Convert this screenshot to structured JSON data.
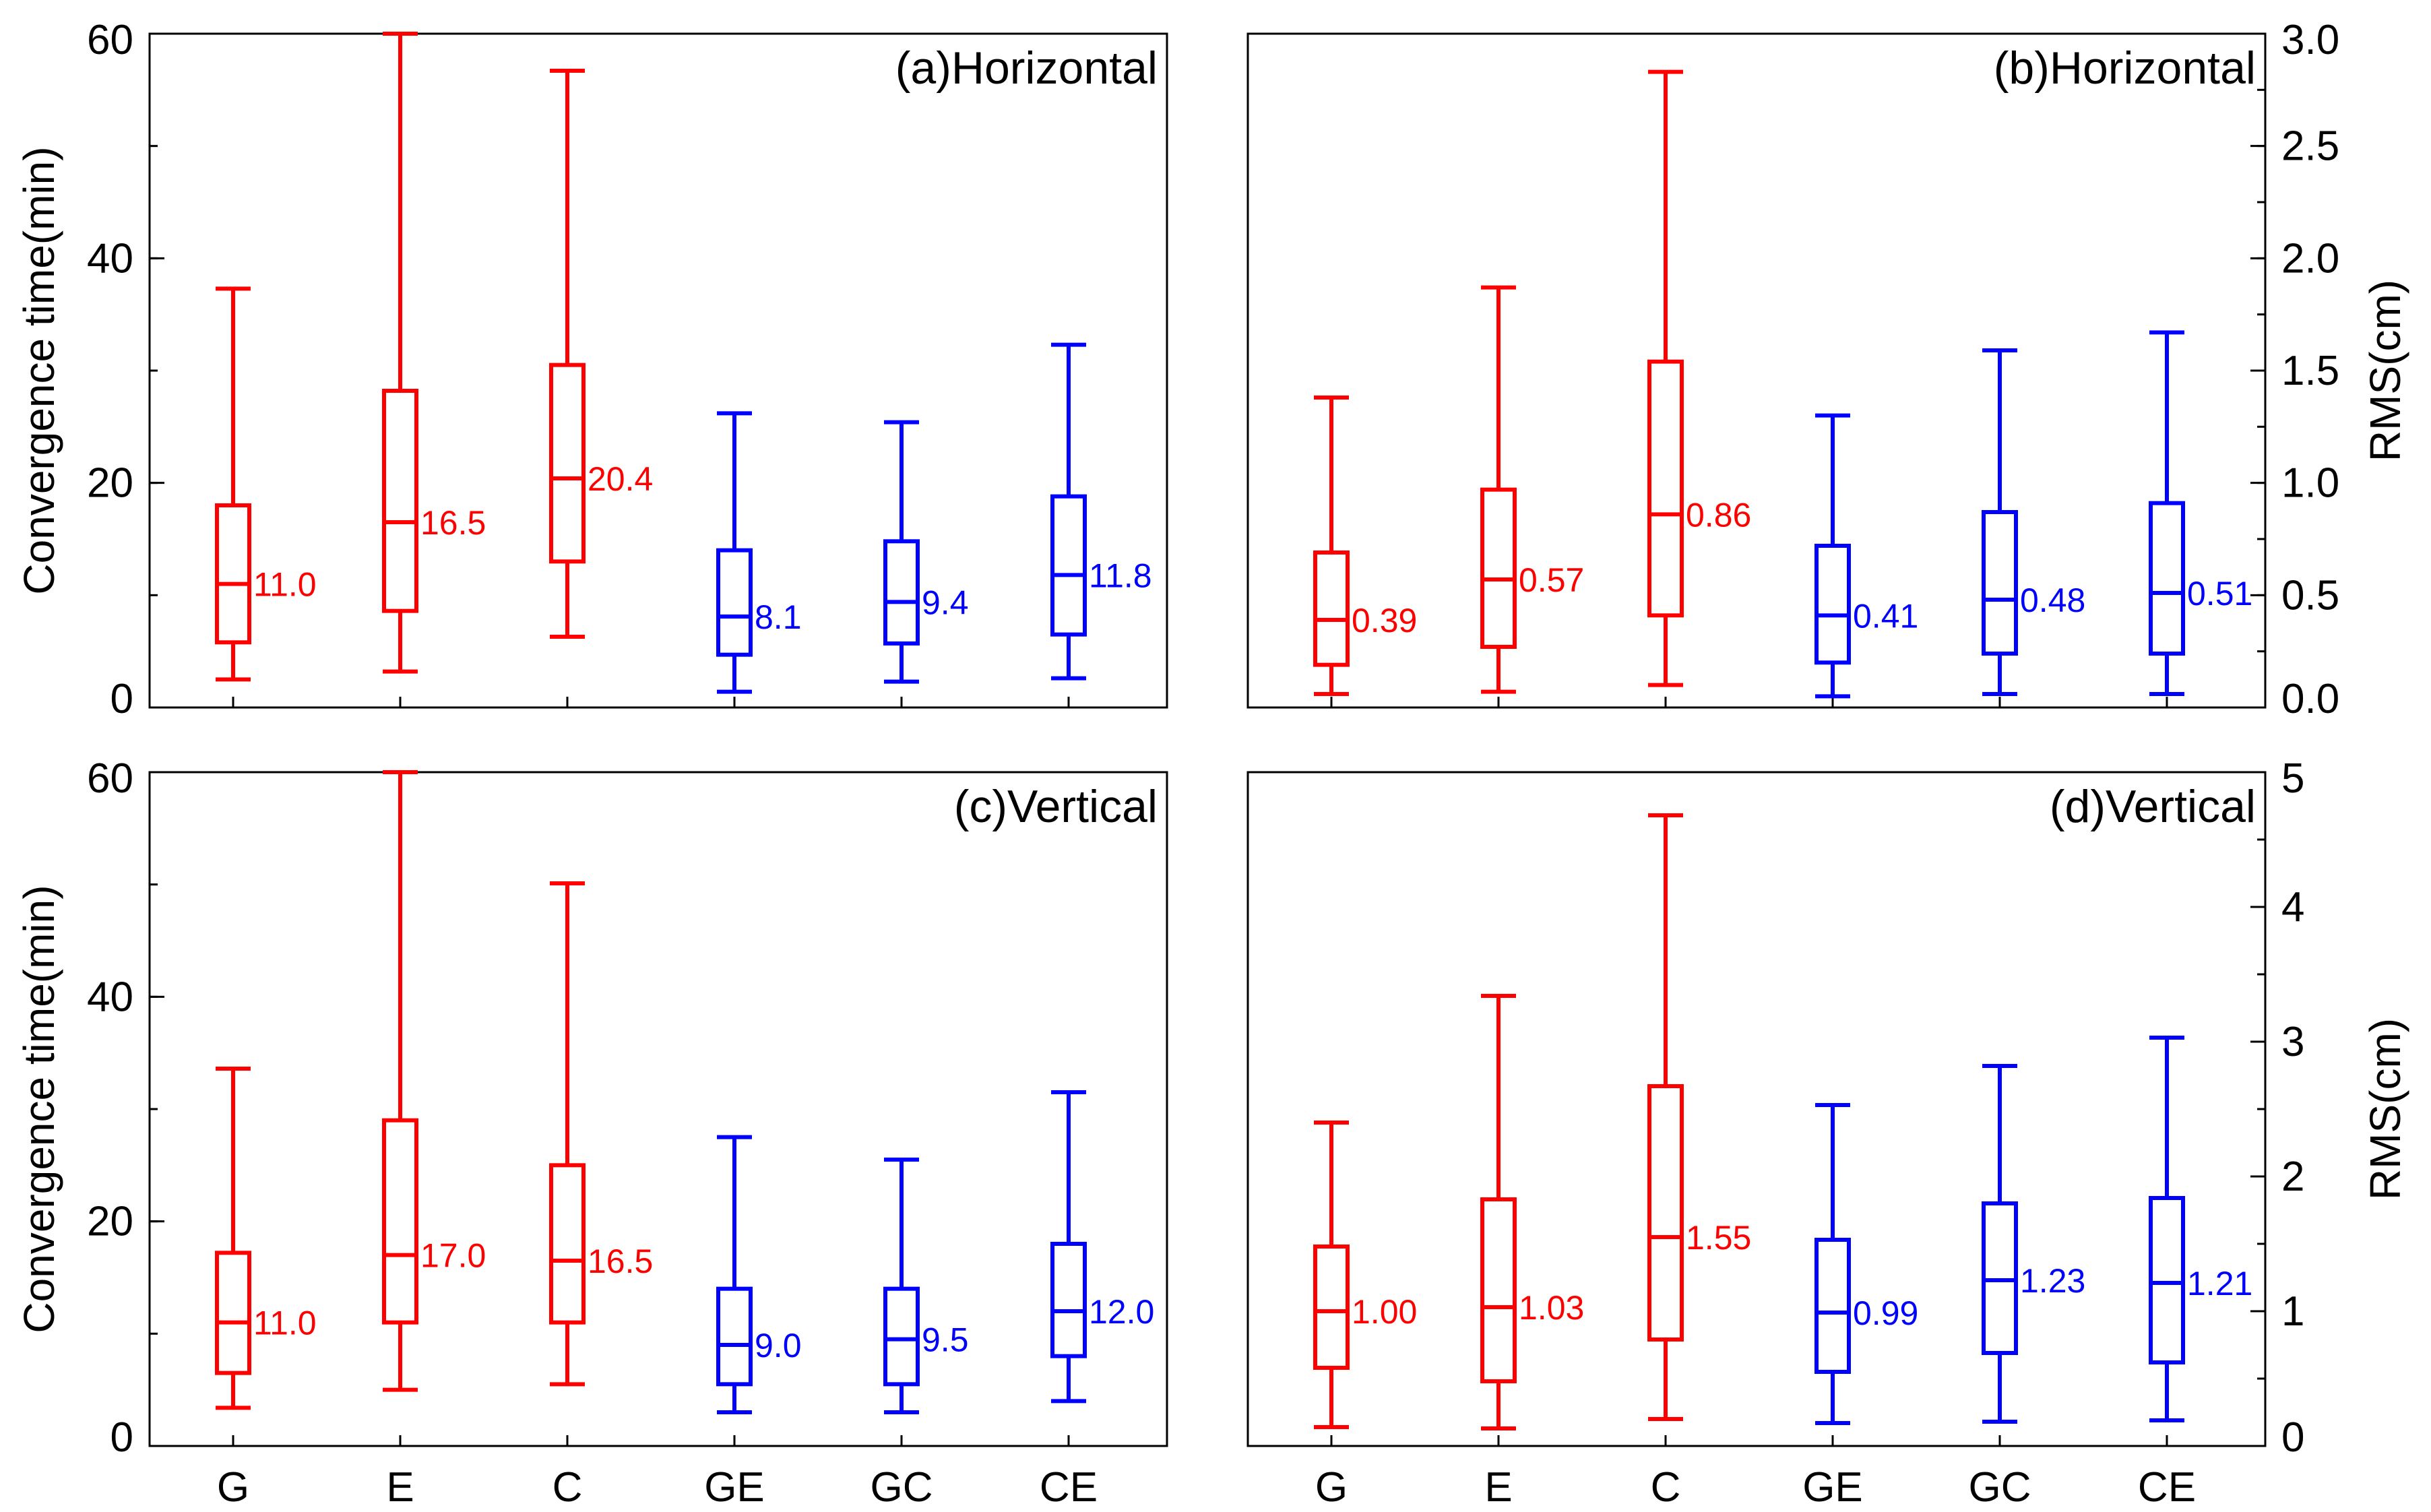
{
  "colors": {
    "single": "#ff0000",
    "dual": "#0000ff",
    "axis": "#000000"
  },
  "chart_data": [
    {
      "type": "boxplot",
      "title": "(a)Horizontal",
      "ylabel": "Convergence time(min)",
      "ylabel_side": "left",
      "ylim": [
        0,
        60
      ],
      "yticks": [
        0,
        20,
        40,
        60
      ],
      "ytick_labels": [
        "0",
        "20",
        "40",
        "60"
      ],
      "minor_step": 10,
      "categories": [
        "G",
        "E",
        "C",
        "GE",
        "GC",
        "CE"
      ],
      "show_xtick_labels": false,
      "boxes": [
        {
          "category": "G",
          "group": "single",
          "whisker_low": 2.5,
          "q1": 5.8,
          "median": 11.0,
          "q3": 18.0,
          "whisker_high": 37.3,
          "label": "11.0"
        },
        {
          "category": "E",
          "group": "single",
          "whisker_low": 3.2,
          "q1": 8.6,
          "median": 16.5,
          "q3": 28.2,
          "whisker_high": 60.0,
          "label": "16.5"
        },
        {
          "category": "C",
          "group": "single",
          "whisker_low": 6.3,
          "q1": 13.0,
          "median": 20.4,
          "q3": 30.5,
          "whisker_high": 56.7,
          "label": "20.4"
        },
        {
          "category": "GE",
          "group": "dual",
          "whisker_low": 1.4,
          "q1": 4.7,
          "median": 8.1,
          "q3": 14.0,
          "whisker_high": 26.2,
          "label": "8.1"
        },
        {
          "category": "GC",
          "group": "dual",
          "whisker_low": 2.3,
          "q1": 5.7,
          "median": 9.4,
          "q3": 14.8,
          "whisker_high": 25.4,
          "label": "9.4"
        },
        {
          "category": "CE",
          "group": "dual",
          "whisker_low": 2.6,
          "q1": 6.5,
          "median": 11.8,
          "q3": 18.8,
          "whisker_high": 32.3,
          "label": "11.8"
        }
      ]
    },
    {
      "type": "boxplot",
      "title": "(b)Horizontal",
      "ylabel": "RMS(cm)",
      "ylabel_side": "right",
      "ylim": [
        0,
        3.0
      ],
      "yticks": [
        0,
        0.5,
        1.0,
        1.5,
        2.0,
        2.5,
        3.0
      ],
      "ytick_labels": [
        "0.0",
        "0.5",
        "1.0",
        "1.5",
        "2.0",
        "2.5",
        "3.0"
      ],
      "minor_step": 0.25,
      "categories": [
        "G",
        "E",
        "C",
        "GE",
        "GC",
        "CE"
      ],
      "show_xtick_labels": false,
      "boxes": [
        {
          "category": "G",
          "group": "single",
          "whisker_low": 0.06,
          "q1": 0.19,
          "median": 0.39,
          "q3": 0.69,
          "whisker_high": 1.38,
          "label": "0.39"
        },
        {
          "category": "E",
          "group": "single",
          "whisker_low": 0.07,
          "q1": 0.27,
          "median": 0.57,
          "q3": 0.97,
          "whisker_high": 1.87,
          "label": "0.57"
        },
        {
          "category": "C",
          "group": "single",
          "whisker_low": 0.1,
          "q1": 0.41,
          "median": 0.86,
          "q3": 1.54,
          "whisker_high": 2.83,
          "label": "0.86"
        },
        {
          "category": "GE",
          "group": "dual",
          "whisker_low": 0.05,
          "q1": 0.2,
          "median": 0.41,
          "q3": 0.72,
          "whisker_high": 1.3,
          "label": "0.41"
        },
        {
          "category": "GC",
          "group": "dual",
          "whisker_low": 0.06,
          "q1": 0.24,
          "median": 0.48,
          "q3": 0.87,
          "whisker_high": 1.59,
          "label": "0.48"
        },
        {
          "category": "CE",
          "group": "dual",
          "whisker_low": 0.06,
          "q1": 0.24,
          "median": 0.51,
          "q3": 0.91,
          "whisker_high": 1.67,
          "label": "0.51"
        }
      ]
    },
    {
      "type": "boxplot",
      "title": "(c)Vertical",
      "ylabel": "Convergence time(min)",
      "ylabel_side": "left",
      "ylim": [
        0,
        60
      ],
      "yticks": [
        0,
        20,
        40,
        60
      ],
      "ytick_labels": [
        "0",
        "20",
        "40",
        "60"
      ],
      "minor_step": 10,
      "categories": [
        "G",
        "E",
        "C",
        "GE",
        "GC",
        "CE"
      ],
      "show_xtick_labels": true,
      "boxes": [
        {
          "category": "G",
          "group": "single",
          "whisker_low": 3.4,
          "q1": 6.5,
          "median": 11.0,
          "q3": 17.2,
          "whisker_high": 33.6,
          "label": "11.0"
        },
        {
          "category": "E",
          "group": "single",
          "whisker_low": 5.0,
          "q1": 11.0,
          "median": 17.0,
          "q3": 29.0,
          "whisker_high": 60.0,
          "label": "17.0"
        },
        {
          "category": "C",
          "group": "single",
          "whisker_low": 5.5,
          "q1": 11.0,
          "median": 16.5,
          "q3": 25.0,
          "whisker_high": 50.1,
          "label": "16.5"
        },
        {
          "category": "GE",
          "group": "dual",
          "whisker_low": 3.0,
          "q1": 5.5,
          "median": 9.0,
          "q3": 14.0,
          "whisker_high": 27.5,
          "label": "9.0"
        },
        {
          "category": "GC",
          "group": "dual",
          "whisker_low": 3.0,
          "q1": 5.5,
          "median": 9.5,
          "q3": 14.0,
          "whisker_high": 25.5,
          "label": "9.5"
        },
        {
          "category": "CE",
          "group": "dual",
          "whisker_low": 4.0,
          "q1": 8.0,
          "median": 12.0,
          "q3": 18.0,
          "whisker_high": 31.5,
          "label": "12.0"
        }
      ]
    },
    {
      "type": "boxplot",
      "title": "(d)Vertical",
      "ylabel": "RMS(cm)",
      "ylabel_side": "right",
      "ylim": [
        0,
        5
      ],
      "yticks": [
        0,
        1,
        2,
        3,
        4,
        5
      ],
      "ytick_labels": [
        "0",
        "1",
        "2",
        "3",
        "4",
        "5"
      ],
      "minor_step": 0.5,
      "categories": [
        "G",
        "E",
        "C",
        "GE",
        "GC",
        "CE"
      ],
      "show_xtick_labels": true,
      "boxes": [
        {
          "category": "G",
          "group": "single",
          "whisker_low": 0.14,
          "q1": 0.58,
          "median": 1.0,
          "q3": 1.48,
          "whisker_high": 2.4,
          "label": "1.00"
        },
        {
          "category": "E",
          "group": "single",
          "whisker_low": 0.13,
          "q1": 0.48,
          "median": 1.03,
          "q3": 1.83,
          "whisker_high": 3.34,
          "label": "1.03"
        },
        {
          "category": "C",
          "group": "single",
          "whisker_low": 0.2,
          "q1": 0.79,
          "median": 1.55,
          "q3": 2.67,
          "whisker_high": 4.68,
          "label": "1.55"
        },
        {
          "category": "GE",
          "group": "dual",
          "whisker_low": 0.17,
          "q1": 0.55,
          "median": 0.99,
          "q3": 1.53,
          "whisker_high": 2.53,
          "label": "0.99"
        },
        {
          "category": "GC",
          "group": "dual",
          "whisker_low": 0.18,
          "q1": 0.69,
          "median": 1.23,
          "q3": 1.8,
          "whisker_high": 2.82,
          "label": "1.23"
        },
        {
          "category": "CE",
          "group": "dual",
          "whisker_low": 0.19,
          "q1": 0.62,
          "median": 1.21,
          "q3": 1.84,
          "whisker_high": 3.03,
          "label": "1.21"
        }
      ]
    }
  ]
}
